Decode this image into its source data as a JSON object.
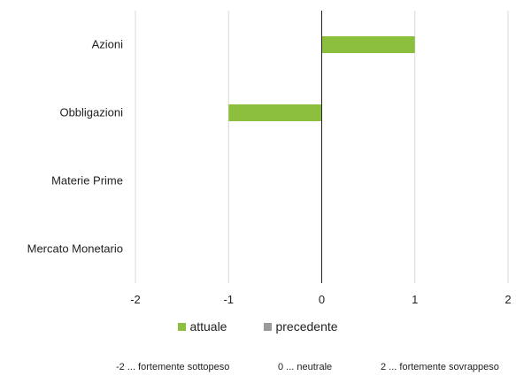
{
  "chart_data": {
    "type": "bar",
    "orientation": "horizontal",
    "categories": [
      "Azioni",
      "Obbligazioni",
      "Materie Prime",
      "Mercato Monetario"
    ],
    "series": [
      {
        "name": "attuale",
        "values": [
          1,
          -1,
          0,
          0
        ],
        "color": "#8dbf3f"
      },
      {
        "name": "precedente",
        "values": [
          0,
          0,
          0,
          0
        ],
        "color": "#9a9a9a"
      }
    ],
    "x_ticks": [
      "-2",
      "-1",
      "0",
      "1",
      "2"
    ],
    "xlim": [
      -2,
      2
    ],
    "grid": true,
    "legend_position": "bottom",
    "notes": [
      "-2 ... fortemente sottopeso",
      "0 ... neutrale",
      "2 ... fortemente sovrappeso"
    ]
  }
}
